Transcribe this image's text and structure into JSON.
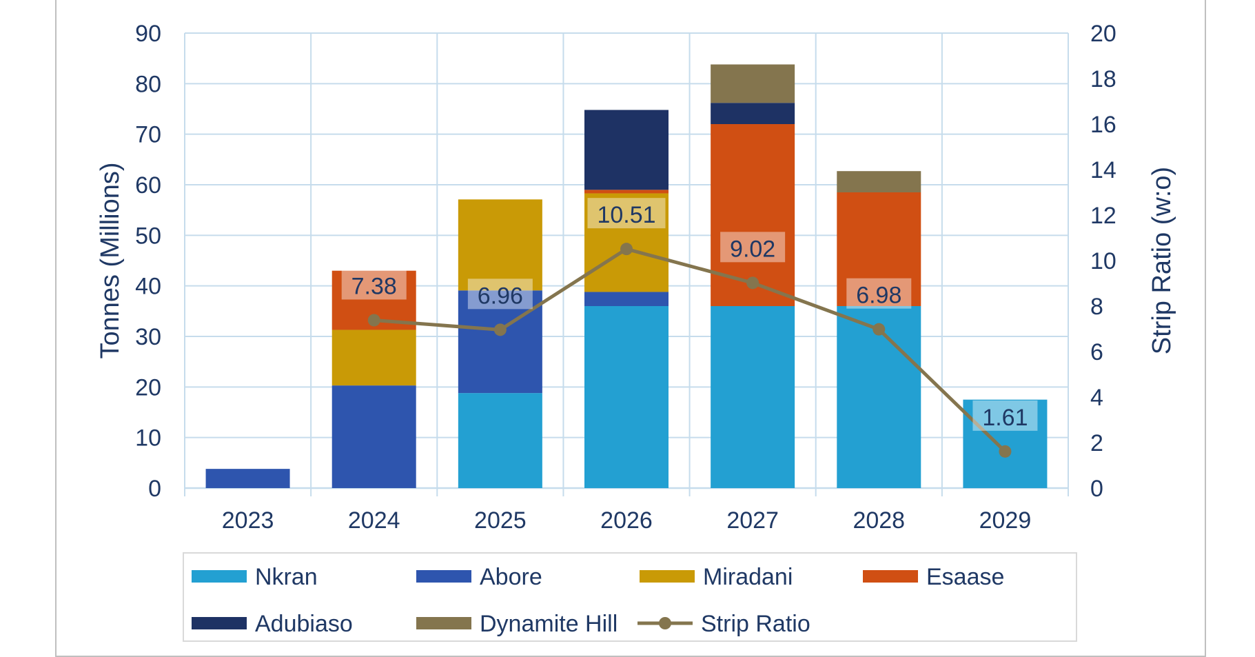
{
  "chart_data": {
    "type": "bar",
    "stacked": true,
    "categories": [
      "2023",
      "2024",
      "2025",
      "2026",
      "2027",
      "2028",
      "2029"
    ],
    "ylabel": "Tonnes (Millions)",
    "y2label": "Strip Ratio (w:o)",
    "ylim": [
      0,
      90
    ],
    "y2lim": [
      0,
      20
    ],
    "yticks": [
      "0",
      "10",
      "20",
      "30",
      "40",
      "50",
      "60",
      "70",
      "80",
      "90"
    ],
    "y2ticks": [
      "0",
      "2",
      "4",
      "6",
      "8",
      "10",
      "12",
      "14",
      "16",
      "18",
      "20"
    ],
    "grid": true,
    "legend_position": "bottom",
    "series": [
      {
        "name": "Nkran",
        "color": "#23a0d2",
        "values": [
          0,
          0,
          18.8,
          36,
          36,
          36,
          17.5
        ]
      },
      {
        "name": "Abore",
        "color": "#2e55ae",
        "values": [
          3.8,
          20.3,
          20.3,
          2.8,
          0,
          0,
          0
        ]
      },
      {
        "name": "Miradani",
        "color": "#c99a06",
        "values": [
          0,
          11,
          18,
          19.5,
          0,
          0,
          0
        ]
      },
      {
        "name": "Esaase",
        "color": "#d04f13",
        "values": [
          0,
          11.7,
          0,
          0.7,
          36,
          22.5,
          0
        ]
      },
      {
        "name": "Adubiaso",
        "color": "#1e3264",
        "values": [
          0,
          0,
          0,
          15.8,
          4.2,
          0,
          0
        ]
      },
      {
        "name": "Dynamite Hill",
        "color": "#84754e",
        "values": [
          0,
          0,
          0,
          0,
          7.6,
          4.2,
          0
        ]
      }
    ],
    "line_series": {
      "name": "Strip Ratio",
      "color": "#84754e",
      "axis": "right",
      "values": [
        null,
        7.38,
        6.96,
        10.51,
        9.02,
        6.98,
        1.61
      ],
      "labels": [
        "",
        "7.38",
        "6.96",
        "10.51",
        "9.02",
        "6.98",
        "1.61"
      ]
    }
  }
}
